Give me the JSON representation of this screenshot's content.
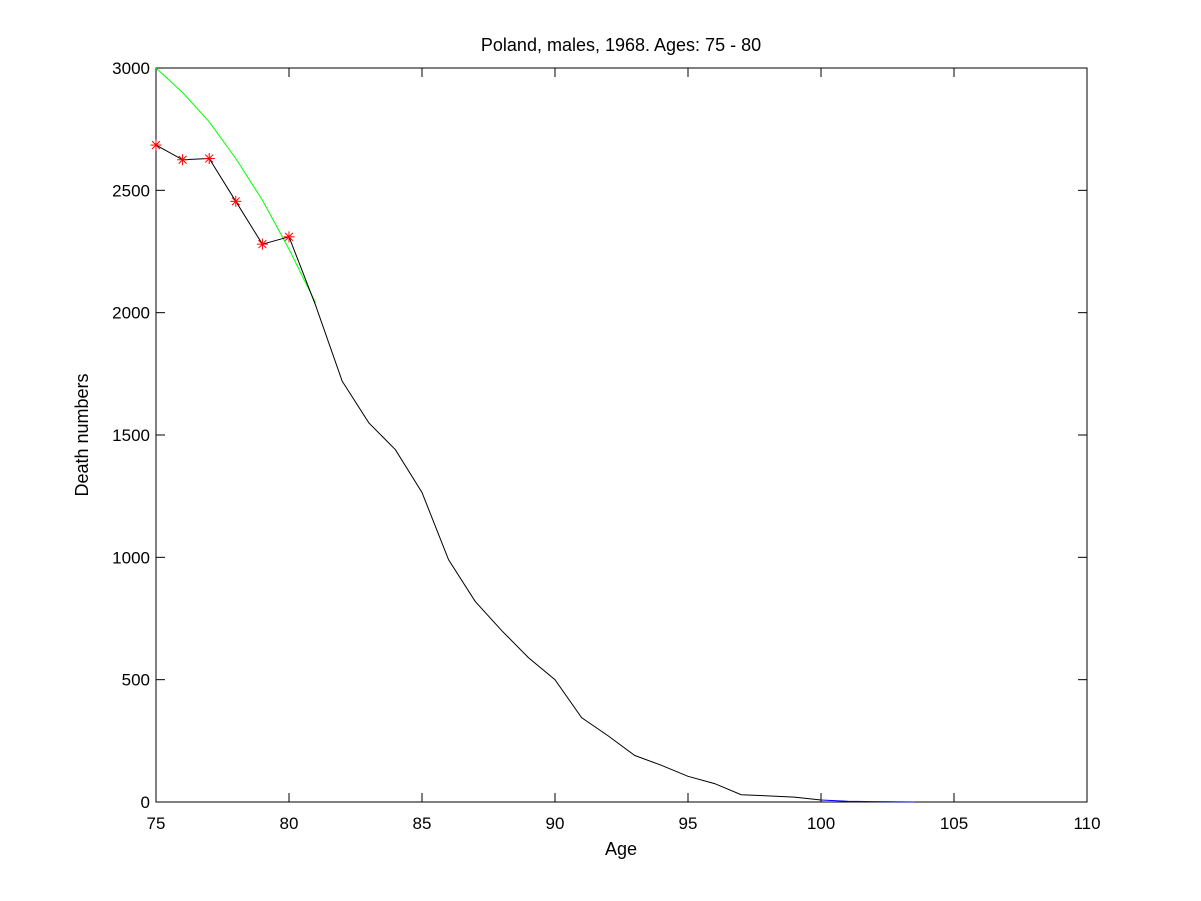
{
  "chart_data": {
    "type": "line",
    "title": "Poland, males, 1968. Ages: 75 - 80",
    "xlabel": "Age",
    "ylabel": "Death numbers",
    "xlim": [
      75,
      110
    ],
    "ylim": [
      0,
      3000
    ],
    "xticks": [
      75,
      80,
      85,
      90,
      95,
      100,
      105,
      110
    ],
    "yticks": [
      0,
      500,
      1000,
      1500,
      2000,
      2500,
      3000
    ],
    "grid": false,
    "legend": "none",
    "series": [
      {
        "color": "#000000",
        "marker": "none",
        "x": [
          75,
          76,
          77,
          78,
          79,
          80,
          81,
          82,
          83,
          84,
          85,
          86,
          87,
          88,
          89,
          90,
          91,
          92,
          93,
          94,
          95,
          96,
          97,
          98,
          99,
          100
        ],
        "y": [
          2685,
          2625,
          2630,
          2455,
          2280,
          2310,
          2030,
          1720,
          1550,
          1440,
          1265,
          990,
          820,
          700,
          590,
          500,
          345,
          270,
          190,
          150,
          105,
          75,
          30,
          25,
          20,
          8
        ]
      },
      {
        "color": "#ff0000",
        "marker": "asterisk",
        "x": [
          75,
          76,
          77,
          78,
          79,
          80
        ],
        "y": [
          2685,
          2625,
          2630,
          2455,
          2280,
          2310
        ]
      },
      {
        "color": "#00ff00",
        "marker": "none",
        "x": [
          75,
          76,
          77,
          78,
          79,
          80,
          81
        ],
        "y": [
          3000,
          2900,
          2780,
          2630,
          2460,
          2260,
          2040
        ]
      },
      {
        "color": "#0000ff",
        "marker": "none",
        "x": [
          100,
          101,
          102,
          103,
          103.5
        ],
        "y": [
          8,
          3,
          1.5,
          0.5,
          0.2
        ]
      }
    ]
  }
}
